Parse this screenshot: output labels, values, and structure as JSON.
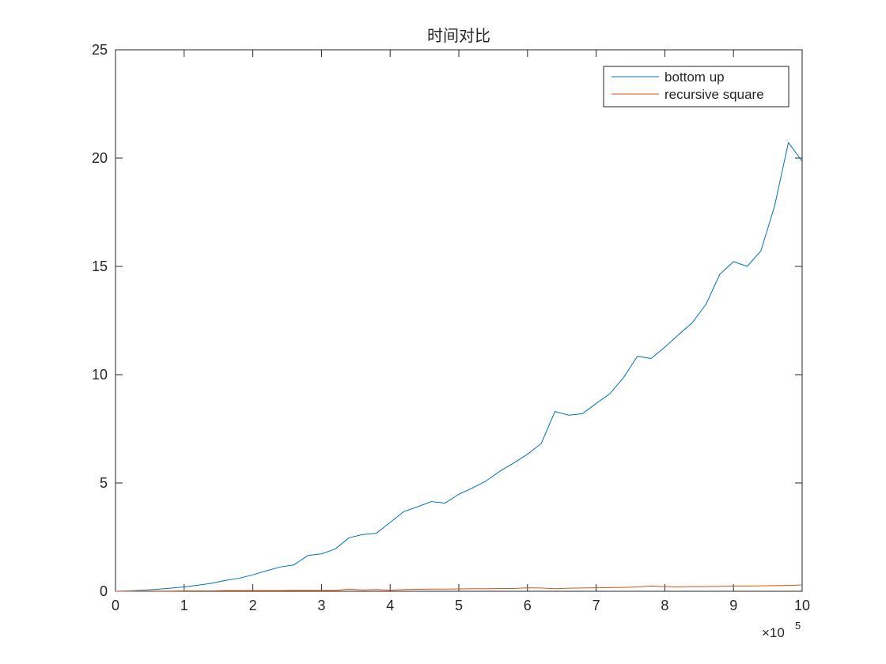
{
  "chart_data": {
    "type": "line",
    "title": "时间对比",
    "xlabel": "",
    "ylabel": "",
    "x_exponent_label": {
      "times": "×10",
      "power": "5"
    },
    "xlim": [
      0,
      10
    ],
    "ylim": [
      0,
      25
    ],
    "xticks": [
      0,
      1,
      2,
      3,
      4,
      5,
      6,
      7,
      8,
      9,
      10
    ],
    "yticks": [
      0,
      5,
      10,
      15,
      20,
      25
    ],
    "grid": false,
    "legend_position": "top-right",
    "x": [
      0,
      0.2,
      0.4,
      0.6,
      0.8,
      1.0,
      1.2,
      1.4,
      1.6,
      1.8,
      2.0,
      2.2,
      2.4,
      2.6,
      2.8,
      3.0,
      3.2,
      3.4,
      3.6,
      3.8,
      4.0,
      4.2,
      4.4,
      4.6,
      4.8,
      5.0,
      5.2,
      5.4,
      5.6,
      5.8,
      6.0,
      6.2,
      6.4,
      6.6,
      6.8,
      7.0,
      7.2,
      7.4,
      7.6,
      7.8,
      8.0,
      8.2,
      8.4,
      8.6,
      8.8,
      9.0,
      9.2,
      9.4,
      9.6,
      9.8,
      10.0
    ],
    "series": [
      {
        "name": "bottom up",
        "color": "#0072BD",
        "values": [
          0,
          0.02,
          0.05,
          0.09,
          0.14,
          0.2,
          0.28,
          0.37,
          0.5,
          0.6,
          0.76,
          0.95,
          1.12,
          1.22,
          1.65,
          1.73,
          1.95,
          2.47,
          2.62,
          2.68,
          3.18,
          3.68,
          3.9,
          4.14,
          4.07,
          4.48,
          4.77,
          5.1,
          5.55,
          5.92,
          6.33,
          6.82,
          8.3,
          8.13,
          8.2,
          8.67,
          9.12,
          9.87,
          10.85,
          10.75,
          11.27,
          11.85,
          12.4,
          13.25,
          14.63,
          15.22,
          15.0,
          15.72,
          17.8,
          20.72,
          19.85
        ]
      },
      {
        "name": "recursive square",
        "color": "#D95319",
        "values": [
          0,
          0,
          0.01,
          0.01,
          0.01,
          0.02,
          0.02,
          0.02,
          0.03,
          0.03,
          0.03,
          0.03,
          0.03,
          0.04,
          0.04,
          0.04,
          0.04,
          0.1,
          0.06,
          0.08,
          0.05,
          0.08,
          0.09,
          0.1,
          0.1,
          0.11,
          0.12,
          0.12,
          0.13,
          0.13,
          0.16,
          0.15,
          0.12,
          0.14,
          0.15,
          0.16,
          0.17,
          0.18,
          0.2,
          0.24,
          0.22,
          0.2,
          0.22,
          0.22,
          0.23,
          0.24,
          0.24,
          0.25,
          0.26,
          0.27,
          0.29
        ]
      }
    ]
  }
}
